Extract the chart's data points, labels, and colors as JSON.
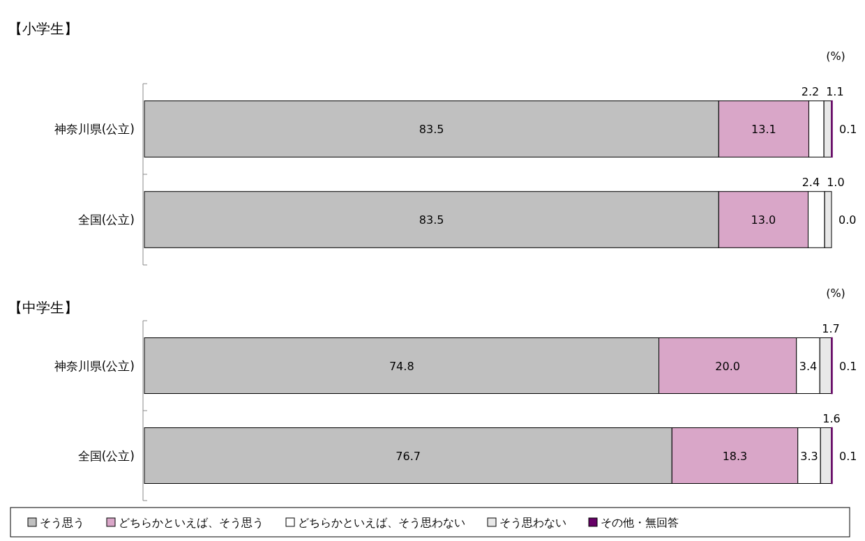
{
  "chart_data": [
    {
      "type": "bar",
      "title": "【小学生】",
      "orientation": "horizontal",
      "stacked": true,
      "xlim": [
        0,
        100
      ],
      "annotations": [
        "(%)"
      ],
      "categories": [
        "神奈川県(公立)",
        "全国(公立)"
      ],
      "series": [
        {
          "color": "#c0c0c0",
          "values": [
            83.5,
            83.5
          ],
          "value_labels": [
            "83.5",
            "83.5"
          ]
        },
        {
          "color": "#d9a6c8",
          "values": [
            13.1,
            13.0
          ],
          "value_labels": [
            "13.1",
            "13.0"
          ]
        },
        {
          "color": "#ffffff",
          "values": [
            2.2,
            2.4
          ],
          "value_labels": [
            "2.2",
            "2.4"
          ]
        },
        {
          "color": "#e8e8e8",
          "values": [
            1.1,
            1.0
          ],
          "value_labels": [
            "1.1",
            "1.0"
          ]
        },
        {
          "color": "#660066",
          "values": [
            0.1,
            0.0
          ],
          "value_labels": [
            "0.1",
            "0.0"
          ]
        }
      ]
    },
    {
      "type": "bar",
      "title": "【中学生】",
      "orientation": "horizontal",
      "stacked": true,
      "xlim": [
        0,
        100
      ],
      "legend": "bottom",
      "annotations": [
        "(%)"
      ],
      "categories": [
        "神奈川県(公立)",
        "全国(公立)"
      ],
      "series": [
        {
          "name": "そう思う",
          "color": "#c0c0c0",
          "values": [
            74.8,
            76.7
          ],
          "value_labels": [
            "74.8",
            "76.7"
          ]
        },
        {
          "name": "どちらかといえば、そう思う",
          "color": "#d9a6c8",
          "values": [
            20.0,
            18.3
          ],
          "value_labels": [
            "20.0",
            "18.3"
          ]
        },
        {
          "name": "どちらかといえば、そう思わない",
          "color": "#ffffff",
          "values": [
            3.4,
            3.3
          ],
          "value_labels": [
            "3.4",
            "3.3"
          ]
        },
        {
          "name": "そう思わない",
          "color": "#e8e8e8",
          "values": [
            1.7,
            1.6
          ],
          "value_labels": [
            "1.7",
            "1.6"
          ]
        },
        {
          "name": "その他・無回答",
          "color": "#660066",
          "values": [
            0.1,
            0.1
          ],
          "value_labels": [
            "0.1",
            "0.1"
          ]
        }
      ]
    }
  ]
}
